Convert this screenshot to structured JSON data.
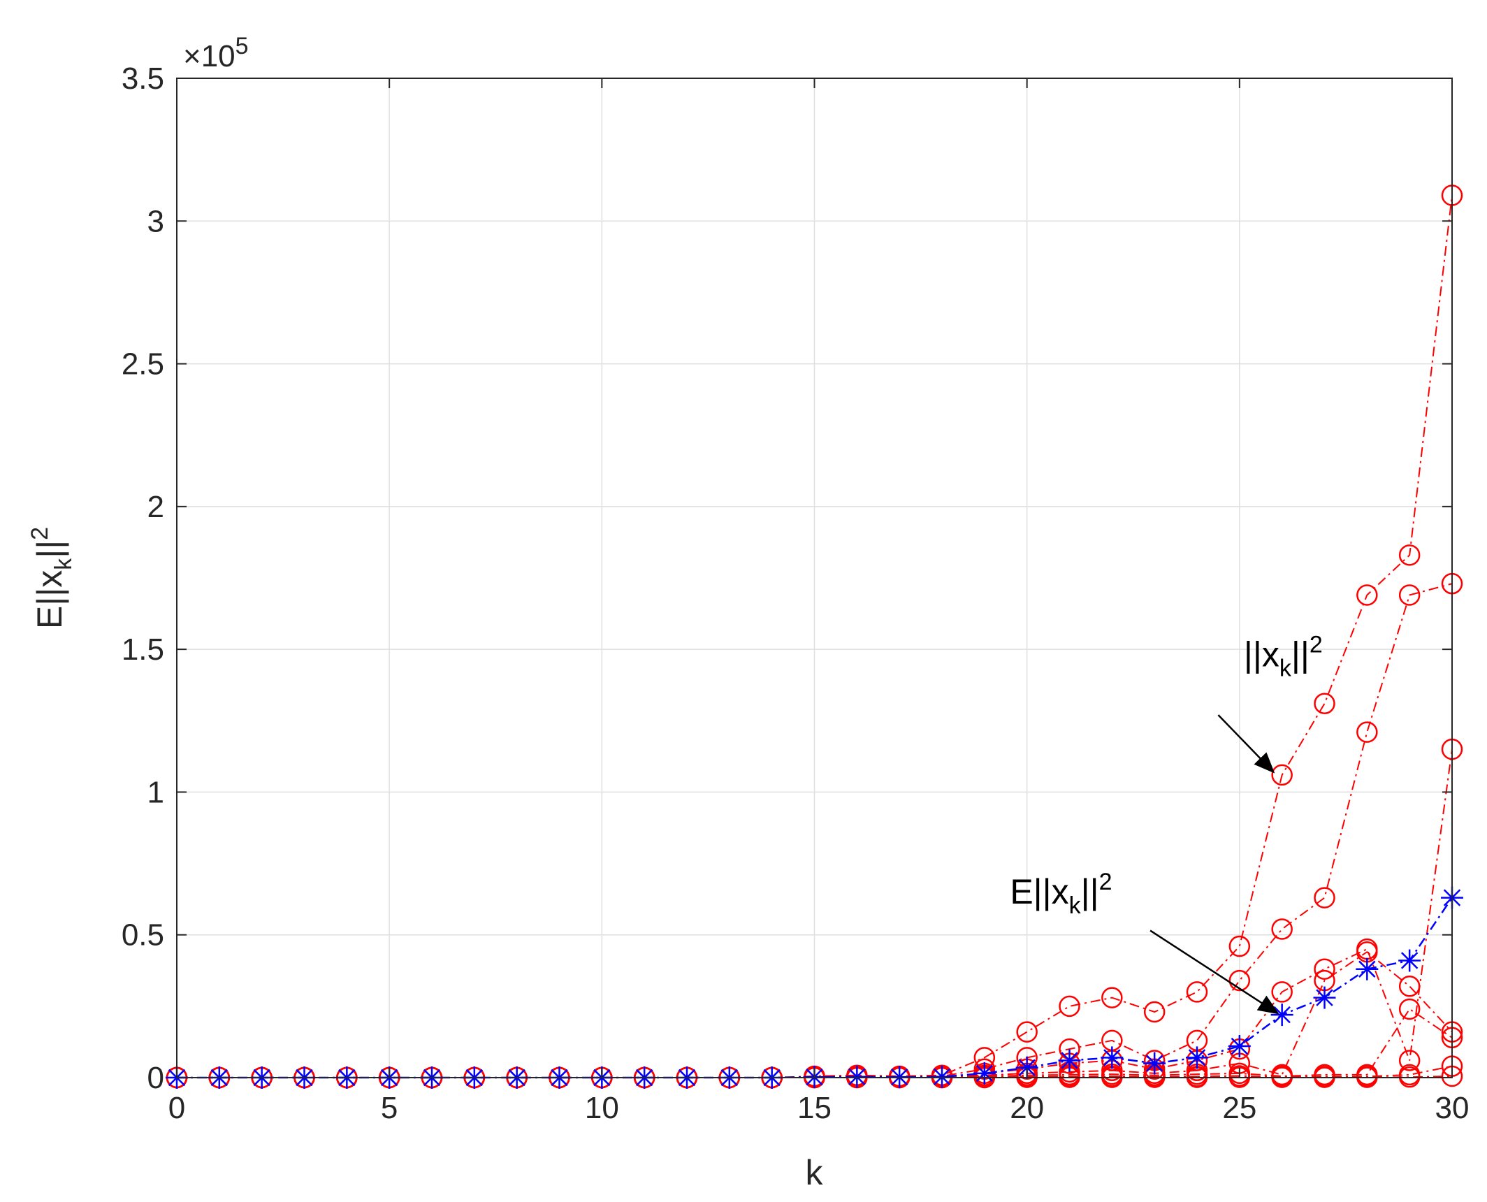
{
  "chart_data": {
    "type": "line",
    "xlabel": "k",
    "ylabel": {
      "main": "E||x",
      "sub": "k",
      "tail": "||",
      "sup": "2"
    },
    "xlim": [
      0,
      30
    ],
    "ylim": [
      0,
      350000
    ],
    "grid": true,
    "x_ticks": [
      0,
      5,
      10,
      15,
      20,
      25,
      30
    ],
    "x_tick_labels": [
      "0",
      "5",
      "10",
      "15",
      "20",
      "25",
      "30"
    ],
    "y_ticks": [
      0,
      50000,
      100000,
      150000,
      200000,
      250000,
      300000,
      350000
    ],
    "y_tick_labels": [
      "0",
      "0.5",
      "1",
      "1.5",
      "2",
      "2.5",
      "3",
      "3.5"
    ],
    "y_exponent": {
      "prefix": "×10",
      "sup": "5"
    },
    "series": [
      {
        "marker": "circle",
        "line": "dashdot",
        "color": "#ff0000",
        "x": [
          0,
          1,
          2,
          3,
          4,
          5,
          6,
          7,
          8,
          9,
          10,
          11,
          12,
          13,
          14,
          15,
          16,
          17,
          18,
          19,
          20,
          21,
          22,
          23,
          24,
          25,
          26,
          27,
          28,
          29,
          30
        ],
        "y": [
          0,
          0,
          0,
          0,
          0,
          0,
          0,
          0,
          0,
          0,
          0,
          0,
          0,
          0,
          0,
          500,
          800,
          500,
          800,
          7000,
          16000,
          25000,
          28000,
          23000,
          30000,
          46000,
          106000,
          131000,
          169000,
          183000,
          309000
        ]
      },
      {
        "marker": "circle",
        "line": "dashdot",
        "color": "#ff0000",
        "x": [
          0,
          1,
          2,
          3,
          4,
          5,
          6,
          7,
          8,
          9,
          10,
          11,
          12,
          13,
          14,
          15,
          16,
          17,
          18,
          19,
          20,
          21,
          22,
          23,
          24,
          25,
          26,
          27,
          28,
          29,
          30
        ],
        "y": [
          0,
          0,
          0,
          0,
          0,
          0,
          0,
          0,
          0,
          0,
          0,
          0,
          0,
          0,
          0,
          300,
          500,
          300,
          500,
          3000,
          7000,
          10000,
          13000,
          6000,
          13000,
          34000,
          52000,
          63000,
          121000,
          169000,
          173000
        ]
      },
      {
        "marker": "circle",
        "line": "dashdot",
        "color": "#ff0000",
        "x": [
          0,
          1,
          2,
          3,
          4,
          5,
          6,
          7,
          8,
          9,
          10,
          11,
          12,
          13,
          14,
          15,
          16,
          17,
          18,
          19,
          20,
          21,
          22,
          23,
          24,
          25,
          26,
          27,
          28,
          29,
          30
        ],
        "y": [
          0,
          0,
          0,
          0,
          0,
          0,
          0,
          0,
          0,
          0,
          0,
          0,
          0,
          0,
          0,
          200,
          300,
          200,
          300,
          1500,
          3000,
          5000,
          6000,
          3000,
          6000,
          10000,
          30000,
          38000,
          45000,
          6000,
          115000
        ]
      },
      {
        "marker": "circle",
        "line": "dashdot",
        "color": "#ff0000",
        "x": [
          0,
          1,
          2,
          3,
          4,
          5,
          6,
          7,
          8,
          9,
          10,
          11,
          12,
          13,
          14,
          15,
          16,
          17,
          18,
          19,
          20,
          21,
          22,
          23,
          24,
          25,
          26,
          27,
          28,
          29,
          30
        ],
        "y": [
          0,
          0,
          0,
          0,
          0,
          0,
          0,
          0,
          0,
          0,
          0,
          0,
          0,
          0,
          0,
          100,
          200,
          100,
          200,
          800,
          1500,
          2000,
          2500,
          1500,
          2500,
          5000,
          1000,
          34000,
          44000,
          32000,
          16000
        ]
      },
      {
        "marker": "circle",
        "line": "dashdot",
        "color": "#ff0000",
        "x": [
          0,
          1,
          2,
          3,
          4,
          5,
          6,
          7,
          8,
          9,
          10,
          11,
          12,
          13,
          14,
          15,
          16,
          17,
          18,
          19,
          20,
          21,
          22,
          23,
          24,
          25,
          26,
          27,
          28,
          29,
          30
        ],
        "y": [
          0,
          0,
          0,
          0,
          0,
          0,
          0,
          0,
          0,
          0,
          0,
          0,
          0,
          0,
          0,
          0,
          100,
          0,
          100,
          400,
          800,
          1000,
          1200,
          800,
          1200,
          1500,
          500,
          1000,
          1000,
          24000,
          14000
        ]
      },
      {
        "marker": "circle",
        "line": "dashdot",
        "color": "#ff0000",
        "x": [
          0,
          1,
          2,
          3,
          4,
          5,
          6,
          7,
          8,
          9,
          10,
          11,
          12,
          13,
          14,
          15,
          16,
          17,
          18,
          19,
          20,
          21,
          22,
          23,
          24,
          25,
          26,
          27,
          28,
          29,
          30
        ],
        "y": [
          0,
          0,
          0,
          0,
          0,
          0,
          0,
          0,
          0,
          0,
          0,
          0,
          0,
          0,
          0,
          0,
          0,
          0,
          0,
          100,
          300,
          400,
          500,
          300,
          400,
          600,
          200,
          400,
          400,
          1000,
          4000
        ]
      },
      {
        "marker": "circle",
        "line": "dashdot",
        "color": "#ff0000",
        "x": [
          0,
          1,
          2,
          3,
          4,
          5,
          6,
          7,
          8,
          9,
          10,
          11,
          12,
          13,
          14,
          15,
          16,
          17,
          18,
          19,
          20,
          21,
          22,
          23,
          24,
          25,
          26,
          27,
          28,
          29,
          30
        ],
        "y": [
          0,
          0,
          0,
          0,
          0,
          0,
          0,
          0,
          0,
          0,
          0,
          0,
          0,
          0,
          0,
          0,
          0,
          0,
          0,
          0,
          100,
          100,
          100,
          100,
          100,
          100,
          100,
          100,
          100,
          200,
          500
        ]
      },
      {
        "marker": "star",
        "line": "dashdot",
        "color": "#0000ff",
        "x": [
          0,
          1,
          2,
          3,
          4,
          5,
          6,
          7,
          8,
          9,
          10,
          11,
          12,
          13,
          14,
          15,
          16,
          17,
          18,
          19,
          20,
          21,
          22,
          23,
          24,
          25,
          26,
          27,
          28,
          29,
          30
        ],
        "y": [
          0,
          0,
          0,
          0,
          0,
          0,
          0,
          0,
          0,
          0,
          0,
          0,
          0,
          0,
          0,
          200,
          300,
          200,
          300,
          1500,
          3500,
          6000,
          7000,
          5000,
          7000,
          11000,
          22000,
          28000,
          38000,
          41000,
          63000
        ]
      }
    ],
    "annotations": [
      {
        "id": "sample",
        "label": {
          "main": "||x",
          "sub": "k",
          "tail": "||",
          "sup": "2"
        },
        "text_pos": [
          25.1,
          144000
        ],
        "arrow_from": [
          24.5,
          127000
        ],
        "arrow_to": [
          25.8,
          107000
        ]
      },
      {
        "id": "mean",
        "label": {
          "main": "E||x",
          "sub": "k",
          "tail": "||",
          "sup": "2"
        },
        "text_pos": [
          19.6,
          61000
        ],
        "arrow_from": [
          22.9,
          51500
        ],
        "arrow_to": [
          25.9,
          22500
        ]
      }
    ]
  }
}
